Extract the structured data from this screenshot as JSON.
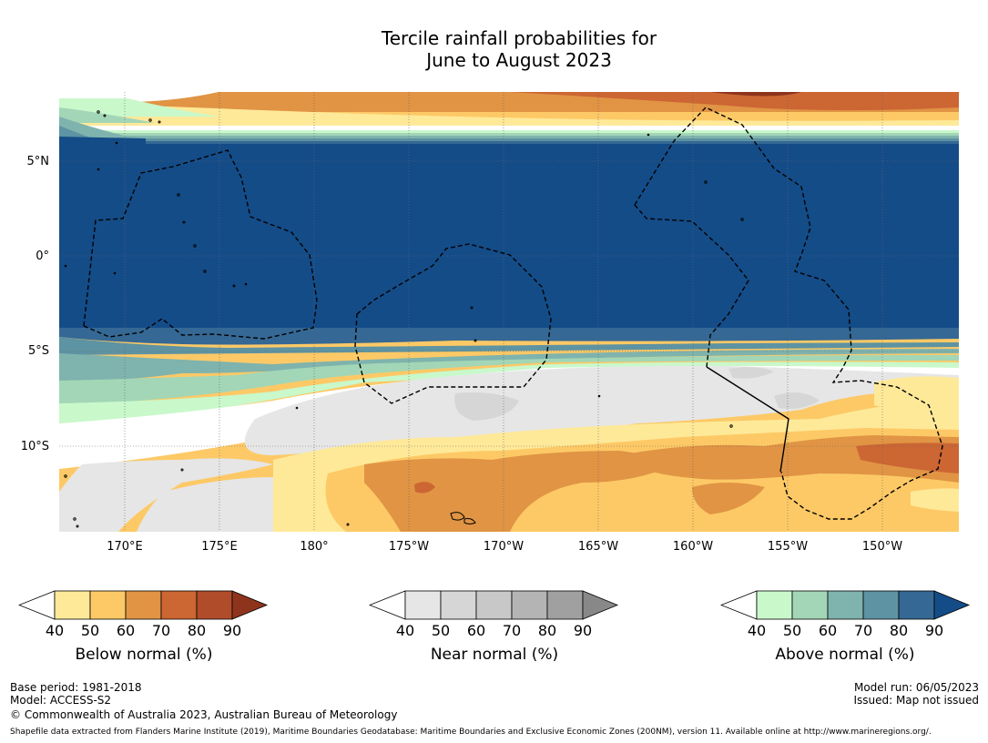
{
  "title": {
    "line1": "Tercile rainfall probabilities for",
    "line2": "June to August 2023"
  },
  "map": {
    "lat_labels": [
      "5°N",
      "0°",
      "5°S",
      "10°S"
    ],
    "lon_labels": [
      "170°E",
      "175°E",
      "180°",
      "175°W",
      "170°W",
      "165°W",
      "160°W",
      "155°W",
      "150°W"
    ]
  },
  "colorbars": [
    {
      "title": "Below normal (%)",
      "ticks": [
        "40",
        "50",
        "60",
        "70",
        "80",
        "90"
      ],
      "colors": [
        "#ffffff",
        "#fee999",
        "#fdc966",
        "#e09444",
        "#cc6633",
        "#b14c2b",
        "#8e341d"
      ]
    },
    {
      "title": "Near normal (%)",
      "ticks": [
        "40",
        "50",
        "60",
        "70",
        "80",
        "90"
      ],
      "colors": [
        "#ffffff",
        "#e6e6e6",
        "#d6d6d6",
        "#c8c8c8",
        "#b4b4b4",
        "#a0a0a0",
        "#888888"
      ]
    },
    {
      "title": "Above normal (%)",
      "ticks": [
        "40",
        "50",
        "60",
        "70",
        "80",
        "90"
      ],
      "colors": [
        "#ffffff",
        "#c9f8cb",
        "#a2d6b6",
        "#7fb3ad",
        "#5d93a2",
        "#356894",
        "#144c88"
      ]
    }
  ],
  "footer": {
    "base_period": "Base period: 1981-2018",
    "model": "Model: ACCESS-S2",
    "copyright": "© Commonwealth of Australia 2023, Australian Bureau of Meteorology",
    "model_run": "Model run: 06/05/2023",
    "issued": "Issued: Map not issued",
    "shapefile_note": "Shapefile data extracted from Flanders Marine Institute (2019), Maritime Boundaries Geodatabase: Maritime Boundaries and Exclusive Economic Zones (200NM), version 11. Available online at http://www.marineregions.org/."
  }
}
